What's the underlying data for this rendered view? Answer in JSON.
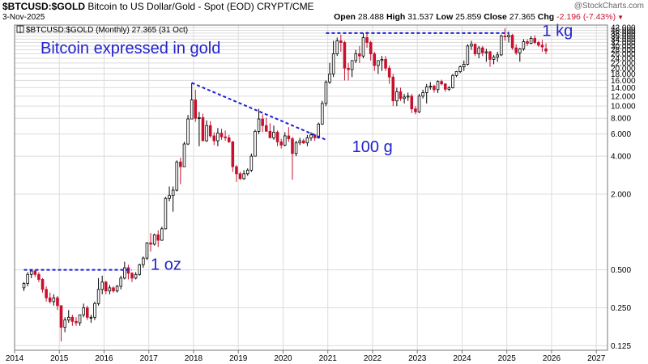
{
  "header": {
    "symbol": "$BTCUSD:$GOLD",
    "description": "Bitcoin to US Dollar/Gold - Spot (EOD)",
    "exchange": "CRYPT/CME",
    "date": "3-Nov-2025",
    "open_label": "Open",
    "open": "28.488",
    "high_label": "High",
    "high": "31.537",
    "low_label": "Low",
    "low": "25.859",
    "close_label": "Close",
    "close": "27.365",
    "chg_label": "Chg",
    "chg": "-2.196 (-7.43%)",
    "watermark": "@StockCharts.com"
  },
  "chart_data": {
    "type": "candlestick",
    "legend": "$BTCUSD:$GOLD (Monthly) 27.365 (31 Oct)",
    "title": "Bitcoin expressed in gold",
    "yscale": "log",
    "ylim": [
      0.115,
      44
    ],
    "xlim": [
      "2014-01",
      "2027-04"
    ],
    "x_ticks": [
      "2014",
      "2015",
      "2016",
      "2017",
      "2018",
      "2019",
      "2020",
      "2021",
      "2022",
      "2023",
      "2024",
      "2025",
      "2026",
      "2027"
    ],
    "y_ticks": [
      0.125,
      0.25,
      0.5,
      2.0,
      4.0,
      6.0,
      8.0,
      10.0,
      12.0,
      14.0,
      16.0,
      18.0,
      20.0,
      22.0,
      24.0,
      26.0,
      28.0,
      30.0,
      32.0,
      34.0,
      36.0,
      38.0,
      40.0,
      42.0
    ],
    "y_tick_labels": [
      "0.125",
      "0.250",
      "0.500",
      "2.000",
      "4.000",
      "6.000",
      "8.000",
      "10.000",
      "12.000",
      "14.000",
      "16.000",
      "18.000",
      "20.000",
      "22.000",
      "24.000",
      "26.000",
      "28.000",
      "30.000",
      "32.000",
      "34.000",
      "36.000",
      "38.000",
      "40.000",
      "42.000"
    ],
    "grid": true,
    "candles": [
      {
        "d": "2014-03",
        "o": 0.36,
        "h": 0.4,
        "l": 0.34,
        "c": 0.39
      },
      {
        "d": "2014-04",
        "o": 0.39,
        "h": 0.48,
        "l": 0.37,
        "c": 0.46
      },
      {
        "d": "2014-05",
        "o": 0.46,
        "h": 0.5,
        "l": 0.43,
        "c": 0.49
      },
      {
        "d": "2014-06",
        "o": 0.49,
        "h": 0.5,
        "l": 0.44,
        "c": 0.46
      },
      {
        "d": "2014-07",
        "o": 0.46,
        "h": 0.48,
        "l": 0.4,
        "c": 0.42
      },
      {
        "d": "2014-08",
        "o": 0.42,
        "h": 0.43,
        "l": 0.33,
        "c": 0.35
      },
      {
        "d": "2014-09",
        "o": 0.35,
        "h": 0.37,
        "l": 0.28,
        "c": 0.3
      },
      {
        "d": "2014-10",
        "o": 0.3,
        "h": 0.33,
        "l": 0.27,
        "c": 0.28
      },
      {
        "d": "2014-11",
        "o": 0.28,
        "h": 0.32,
        "l": 0.26,
        "c": 0.3
      },
      {
        "d": "2014-12",
        "o": 0.3,
        "h": 0.31,
        "l": 0.24,
        "c": 0.26
      },
      {
        "d": "2015-01",
        "o": 0.26,
        "h": 0.26,
        "l": 0.135,
        "c": 0.175
      },
      {
        "d": "2015-02",
        "o": 0.175,
        "h": 0.21,
        "l": 0.16,
        "c": 0.2
      },
      {
        "d": "2015-03",
        "o": 0.2,
        "h": 0.24,
        "l": 0.19,
        "c": 0.21
      },
      {
        "d": "2015-04",
        "o": 0.21,
        "h": 0.22,
        "l": 0.18,
        "c": 0.195
      },
      {
        "d": "2015-05",
        "o": 0.195,
        "h": 0.21,
        "l": 0.18,
        "c": 0.19
      },
      {
        "d": "2015-06",
        "o": 0.19,
        "h": 0.22,
        "l": 0.18,
        "c": 0.22
      },
      {
        "d": "2015-07",
        "o": 0.22,
        "h": 0.27,
        "l": 0.21,
        "c": 0.25
      },
      {
        "d": "2015-08",
        "o": 0.25,
        "h": 0.26,
        "l": 0.2,
        "c": 0.21
      },
      {
        "d": "2015-09",
        "o": 0.21,
        "h": 0.22,
        "l": 0.19,
        "c": 0.21
      },
      {
        "d": "2015-10",
        "o": 0.21,
        "h": 0.28,
        "l": 0.2,
        "c": 0.27
      },
      {
        "d": "2015-11",
        "o": 0.27,
        "h": 0.43,
        "l": 0.26,
        "c": 0.35
      },
      {
        "d": "2015-12",
        "o": 0.35,
        "h": 0.45,
        "l": 0.32,
        "c": 0.4
      },
      {
        "d": "2016-01",
        "o": 0.4,
        "h": 0.41,
        "l": 0.32,
        "c": 0.34
      },
      {
        "d": "2016-02",
        "o": 0.34,
        "h": 0.38,
        "l": 0.32,
        "c": 0.36
      },
      {
        "d": "2016-03",
        "o": 0.36,
        "h": 0.37,
        "l": 0.33,
        "c": 0.34
      },
      {
        "d": "2016-04",
        "o": 0.34,
        "h": 0.38,
        "l": 0.33,
        "c": 0.37
      },
      {
        "d": "2016-05",
        "o": 0.37,
        "h": 0.45,
        "l": 0.35,
        "c": 0.43
      },
      {
        "d": "2016-06",
        "o": 0.43,
        "h": 0.58,
        "l": 0.42,
        "c": 0.52
      },
      {
        "d": "2016-07",
        "o": 0.52,
        "h": 0.55,
        "l": 0.42,
        "c": 0.47
      },
      {
        "d": "2016-08",
        "o": 0.47,
        "h": 0.48,
        "l": 0.4,
        "c": 0.43
      },
      {
        "d": "2016-09",
        "o": 0.43,
        "h": 0.48,
        "l": 0.42,
        "c": 0.46
      },
      {
        "d": "2016-10",
        "o": 0.46,
        "h": 0.56,
        "l": 0.45,
        "c": 0.55
      },
      {
        "d": "2016-11",
        "o": 0.55,
        "h": 0.64,
        "l": 0.52,
        "c": 0.62
      },
      {
        "d": "2016-12",
        "o": 0.62,
        "h": 0.83,
        "l": 0.6,
        "c": 0.82
      },
      {
        "d": "2017-01",
        "o": 0.82,
        "h": 0.98,
        "l": 0.7,
        "c": 0.8
      },
      {
        "d": "2017-02",
        "o": 0.8,
        "h": 0.97,
        "l": 0.78,
        "c": 0.95
      },
      {
        "d": "2017-03",
        "o": 0.95,
        "h": 1.03,
        "l": 0.76,
        "c": 0.86
      },
      {
        "d": "2017-04",
        "o": 0.86,
        "h": 1.1,
        "l": 0.85,
        "c": 1.06
      },
      {
        "d": "2017-05",
        "o": 1.06,
        "h": 1.9,
        "l": 1.05,
        "c": 1.85
      },
      {
        "d": "2017-06",
        "o": 1.85,
        "h": 2.3,
        "l": 1.75,
        "c": 1.95
      },
      {
        "d": "2017-07",
        "o": 1.95,
        "h": 2.3,
        "l": 1.45,
        "c": 2.15
      },
      {
        "d": "2017-08",
        "o": 2.15,
        "h": 3.7,
        "l": 2.1,
        "c": 3.6
      },
      {
        "d": "2017-09",
        "o": 3.6,
        "h": 3.9,
        "l": 2.4,
        "c": 3.3
      },
      {
        "d": "2017-10",
        "o": 3.3,
        "h": 5.2,
        "l": 3.3,
        "c": 5.0
      },
      {
        "d": "2017-11",
        "o": 5.0,
        "h": 8.5,
        "l": 4.9,
        "c": 7.9
      },
      {
        "d": "2017-12",
        "o": 7.9,
        "h": 15.3,
        "l": 8.0,
        "c": 11.2
      },
      {
        "d": "2018-01",
        "o": 11.2,
        "h": 13.5,
        "l": 7.5,
        "c": 8.0
      },
      {
        "d": "2018-02",
        "o": 8.0,
        "h": 9.0,
        "l": 4.8,
        "c": 8.1
      },
      {
        "d": "2018-03",
        "o": 8.1,
        "h": 8.7,
        "l": 5.4,
        "c": 5.3
      },
      {
        "d": "2018-04",
        "o": 5.3,
        "h": 7.7,
        "l": 5.2,
        "c": 7.0
      },
      {
        "d": "2018-05",
        "o": 7.0,
        "h": 7.6,
        "l": 5.6,
        "c": 5.8
      },
      {
        "d": "2018-06",
        "o": 5.8,
        "h": 6.2,
        "l": 4.9,
        "c": 5.3
      },
      {
        "d": "2018-07",
        "o": 5.3,
        "h": 6.7,
        "l": 4.8,
        "c": 6.1
      },
      {
        "d": "2018-08",
        "o": 6.1,
        "h": 6.6,
        "l": 5.4,
        "c": 5.7
      },
      {
        "d": "2018-09",
        "o": 5.7,
        "h": 6.4,
        "l": 5.3,
        "c": 5.6
      },
      {
        "d": "2018-10",
        "o": 5.6,
        "h": 5.9,
        "l": 5.1,
        "c": 5.2
      },
      {
        "d": "2018-11",
        "o": 5.2,
        "h": 5.3,
        "l": 3.0,
        "c": 3.3
      },
      {
        "d": "2018-12",
        "o": 3.3,
        "h": 3.4,
        "l": 2.5,
        "c": 2.9
      },
      {
        "d": "2019-01",
        "o": 2.9,
        "h": 3.0,
        "l": 2.6,
        "c": 2.65
      },
      {
        "d": "2019-02",
        "o": 2.65,
        "h": 3.1,
        "l": 2.6,
        "c": 2.9
      },
      {
        "d": "2019-03",
        "o": 2.9,
        "h": 3.2,
        "l": 2.8,
        "c": 3.1
      },
      {
        "d": "2019-04",
        "o": 3.1,
        "h": 4.2,
        "l": 3.0,
        "c": 4.0
      },
      {
        "d": "2019-05",
        "o": 4.0,
        "h": 6.5,
        "l": 4.0,
        "c": 6.3
      },
      {
        "d": "2019-06",
        "o": 6.3,
        "h": 9.5,
        "l": 6.0,
        "c": 7.9
      },
      {
        "d": "2019-07",
        "o": 7.9,
        "h": 8.6,
        "l": 6.2,
        "c": 7.0
      },
      {
        "d": "2019-08",
        "o": 7.0,
        "h": 8.1,
        "l": 6.5,
        "c": 6.3
      },
      {
        "d": "2019-09",
        "o": 6.3,
        "h": 7.3,
        "l": 5.6,
        "c": 5.6
      },
      {
        "d": "2019-10",
        "o": 5.6,
        "h": 7.0,
        "l": 5.4,
        "c": 6.2
      },
      {
        "d": "2019-11",
        "o": 6.2,
        "h": 6.4,
        "l": 4.8,
        "c": 5.2
      },
      {
        "d": "2019-12",
        "o": 5.2,
        "h": 5.5,
        "l": 4.6,
        "c": 4.9
      },
      {
        "d": "2020-01",
        "o": 4.9,
        "h": 6.2,
        "l": 4.8,
        "c": 5.8
      },
      {
        "d": "2020-02",
        "o": 5.8,
        "h": 6.8,
        "l": 5.2,
        "c": 5.5
      },
      {
        "d": "2020-03",
        "o": 5.5,
        "h": 5.7,
        "l": 2.6,
        "c": 4.2
      },
      {
        "d": "2020-04",
        "o": 4.2,
        "h": 5.3,
        "l": 4.0,
        "c": 5.1
      },
      {
        "d": "2020-05",
        "o": 5.1,
        "h": 5.6,
        "l": 4.9,
        "c": 5.3
      },
      {
        "d": "2020-06",
        "o": 5.3,
        "h": 5.5,
        "l": 5.0,
        "c": 5.1
      },
      {
        "d": "2020-07",
        "o": 5.1,
        "h": 5.9,
        "l": 4.8,
        "c": 5.6
      },
      {
        "d": "2020-08",
        "o": 5.6,
        "h": 6.2,
        "l": 5.3,
        "c": 5.9
      },
      {
        "d": "2020-09",
        "o": 5.9,
        "h": 6.0,
        "l": 5.3,
        "c": 5.6
      },
      {
        "d": "2020-10",
        "o": 5.6,
        "h": 7.4,
        "l": 5.5,
        "c": 7.2
      },
      {
        "d": "2020-11",
        "o": 7.2,
        "h": 11.0,
        "l": 7.1,
        "c": 10.5
      },
      {
        "d": "2020-12",
        "o": 10.5,
        "h": 16.0,
        "l": 10.0,
        "c": 15.5
      },
      {
        "d": "2021-01",
        "o": 15.5,
        "h": 22.0,
        "l": 15.0,
        "c": 18.0
      },
      {
        "d": "2021-02",
        "o": 18.0,
        "h": 33.0,
        "l": 17.0,
        "c": 26.0
      },
      {
        "d": "2021-03",
        "o": 26.0,
        "h": 35.0,
        "l": 25.0,
        "c": 33.0
      },
      {
        "d": "2021-04",
        "o": 33.0,
        "h": 37.0,
        "l": 27.0,
        "c": 32.0
      },
      {
        "d": "2021-05",
        "o": 32.0,
        "h": 33.0,
        "l": 16.0,
        "c": 20.0
      },
      {
        "d": "2021-06",
        "o": 20.0,
        "h": 22.0,
        "l": 16.0,
        "c": 19.5
      },
      {
        "d": "2021-07",
        "o": 19.5,
        "h": 23.0,
        "l": 17.0,
        "c": 23.0
      },
      {
        "d": "2021-08",
        "o": 23.0,
        "h": 28.0,
        "l": 22.0,
        "c": 26.0
      },
      {
        "d": "2021-09",
        "o": 26.0,
        "h": 30.0,
        "l": 22.0,
        "c": 25.0
      },
      {
        "d": "2021-10",
        "o": 25.0,
        "h": 38.0,
        "l": 24.0,
        "c": 35.0
      },
      {
        "d": "2021-11",
        "o": 35.0,
        "h": 39.0,
        "l": 29.0,
        "c": 32.0
      },
      {
        "d": "2021-12",
        "o": 32.0,
        "h": 33.0,
        "l": 23.0,
        "c": 26.0
      },
      {
        "d": "2022-01",
        "o": 26.0,
        "h": 27.0,
        "l": 19.0,
        "c": 21.0
      },
      {
        "d": "2022-02",
        "o": 21.0,
        "h": 23.0,
        "l": 18.0,
        "c": 23.0
      },
      {
        "d": "2022-03",
        "o": 23.0,
        "h": 25.0,
        "l": 19.0,
        "c": 23.5
      },
      {
        "d": "2022-04",
        "o": 23.5,
        "h": 25.0,
        "l": 19.0,
        "c": 20.0
      },
      {
        "d": "2022-05",
        "o": 20.0,
        "h": 21.0,
        "l": 15.0,
        "c": 17.0
      },
      {
        "d": "2022-06",
        "o": 17.0,
        "h": 18.0,
        "l": 10.0,
        "c": 11.0
      },
      {
        "d": "2022-07",
        "o": 11.0,
        "h": 14.0,
        "l": 10.0,
        "c": 13.0
      },
      {
        "d": "2022-08",
        "o": 13.0,
        "h": 14.0,
        "l": 11.0,
        "c": 11.5
      },
      {
        "d": "2022-09",
        "o": 11.5,
        "h": 12.5,
        "l": 10.5,
        "c": 11.8
      },
      {
        "d": "2022-10",
        "o": 11.8,
        "h": 12.8,
        "l": 11.0,
        "c": 12.0
      },
      {
        "d": "2022-11",
        "o": 12.0,
        "h": 12.5,
        "l": 8.8,
        "c": 9.5
      },
      {
        "d": "2022-12",
        "o": 9.5,
        "h": 10.0,
        "l": 8.6,
        "c": 9.0
      },
      {
        "d": "2023-01",
        "o": 9.0,
        "h": 12.5,
        "l": 8.8,
        "c": 12.0
      },
      {
        "d": "2023-02",
        "o": 12.0,
        "h": 13.5,
        "l": 11.5,
        "c": 12.8
      },
      {
        "d": "2023-03",
        "o": 12.8,
        "h": 15.0,
        "l": 10.5,
        "c": 14.2
      },
      {
        "d": "2023-04",
        "o": 14.2,
        "h": 15.5,
        "l": 13.5,
        "c": 14.4
      },
      {
        "d": "2023-05",
        "o": 14.4,
        "h": 14.8,
        "l": 12.8,
        "c": 13.5
      },
      {
        "d": "2023-06",
        "o": 13.5,
        "h": 16.0,
        "l": 12.7,
        "c": 15.7
      },
      {
        "d": "2023-07",
        "o": 15.7,
        "h": 16.2,
        "l": 14.6,
        "c": 15.0
      },
      {
        "d": "2023-08",
        "o": 15.0,
        "h": 15.2,
        "l": 13.0,
        "c": 13.6
      },
      {
        "d": "2023-09",
        "o": 13.6,
        "h": 14.4,
        "l": 13.2,
        "c": 14.0
      },
      {
        "d": "2023-10",
        "o": 14.0,
        "h": 18.0,
        "l": 13.8,
        "c": 17.5
      },
      {
        "d": "2023-11",
        "o": 17.5,
        "h": 19.0,
        "l": 17.0,
        "c": 18.8
      },
      {
        "d": "2023-12",
        "o": 18.8,
        "h": 21.0,
        "l": 18.3,
        "c": 20.5
      },
      {
        "d": "2024-01",
        "o": 20.5,
        "h": 23.0,
        "l": 19.0,
        "c": 21.5
      },
      {
        "d": "2024-02",
        "o": 21.5,
        "h": 31.0,
        "l": 21.0,
        "c": 30.0
      },
      {
        "d": "2024-03",
        "o": 30.0,
        "h": 33.0,
        "l": 28.0,
        "c": 31.0
      },
      {
        "d": "2024-04",
        "o": 31.0,
        "h": 31.5,
        "l": 25.0,
        "c": 26.0
      },
      {
        "d": "2024-05",
        "o": 26.0,
        "h": 30.0,
        "l": 24.0,
        "c": 29.0
      },
      {
        "d": "2024-06",
        "o": 29.0,
        "h": 30.0,
        "l": 25.0,
        "c": 26.5
      },
      {
        "d": "2024-07",
        "o": 26.5,
        "h": 28.5,
        "l": 22.5,
        "c": 27.0
      },
      {
        "d": "2024-08",
        "o": 27.0,
        "h": 27.5,
        "l": 20.5,
        "c": 23.5
      },
      {
        "d": "2024-09",
        "o": 23.5,
        "h": 25.5,
        "l": 21.5,
        "c": 24.5
      },
      {
        "d": "2024-10",
        "o": 24.5,
        "h": 27.0,
        "l": 22.5,
        "c": 25.5
      },
      {
        "d": "2024-11",
        "o": 25.5,
        "h": 37.0,
        "l": 25.0,
        "c": 36.0
      },
      {
        "d": "2024-12",
        "o": 36.0,
        "h": 41.5,
        "l": 33.0,
        "c": 35.5
      },
      {
        "d": "2025-01",
        "o": 35.5,
        "h": 39.0,
        "l": 32.0,
        "c": 36.5
      },
      {
        "d": "2025-02",
        "o": 36.5,
        "h": 37.5,
        "l": 28.0,
        "c": 29.0
      },
      {
        "d": "2025-03",
        "o": 29.0,
        "h": 31.0,
        "l": 25.5,
        "c": 26.5
      },
      {
        "d": "2025-04",
        "o": 26.5,
        "h": 29.0,
        "l": 22.5,
        "c": 28.5
      },
      {
        "d": "2025-05",
        "o": 28.5,
        "h": 34.0,
        "l": 27.5,
        "c": 32.5
      },
      {
        "d": "2025-06",
        "o": 32.5,
        "h": 34.0,
        "l": 30.0,
        "c": 31.5
      },
      {
        "d": "2025-07",
        "o": 31.5,
        "h": 36.0,
        "l": 31.0,
        "c": 34.5
      },
      {
        "d": "2025-08",
        "o": 34.5,
        "h": 36.5,
        "l": 31.0,
        "c": 32.0
      },
      {
        "d": "2025-09",
        "o": 32.0,
        "h": 33.0,
        "l": 29.5,
        "c": 30.5
      },
      {
        "d": "2025-10",
        "o": 30.5,
        "h": 33.5,
        "l": 27.0,
        "c": 29.5
      },
      {
        "d": "2025-11",
        "o": 28.488,
        "h": 31.537,
        "l": 25.859,
        "c": 27.365
      }
    ],
    "annotations": [
      {
        "text": "1 oz",
        "x": "2017-01",
        "y": 0.5
      },
      {
        "text": "100 g",
        "x": "2021-07",
        "y": 4.3
      },
      {
        "text": "1 kg",
        "x": "2025-10",
        "y": 36
      }
    ],
    "lines": [
      {
        "from": [
          "2014-03",
          0.5
        ],
        "to": [
          "2016-08",
          0.5
        ]
      },
      {
        "from": [
          "2017-12",
          15.3
        ],
        "to": [
          "2020-12",
          5.4
        ]
      },
      {
        "from": [
          "2020-12",
          38.0
        ],
        "to": [
          "2025-01",
          38.0
        ]
      }
    ]
  },
  "colors": {
    "up_fill": "#ffffff",
    "down_fill": "#c8102e",
    "candle_outline": "#000000",
    "trendline": "#1f1fd6",
    "annotation_text": "#2222cc",
    "grid": "#dcdcdc",
    "axis": "#777777"
  }
}
